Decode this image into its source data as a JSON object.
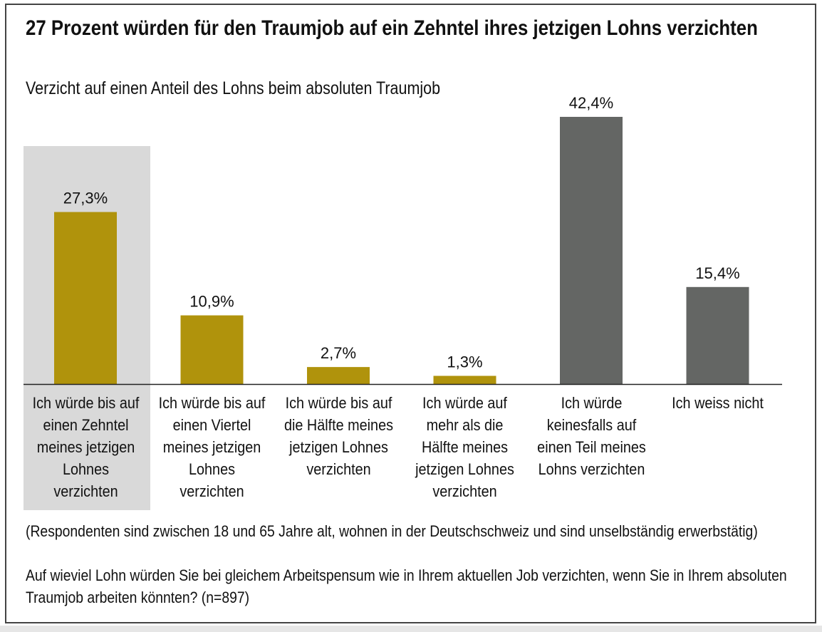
{
  "chart_data": {
    "type": "bar",
    "title": "27 Prozent würden für den Traumjob auf ein Zehntel ihres jetzigen Lohns verzichten",
    "subtitle": "Verzicht auf einen Anteil des Lohns beim absoluten Traumjob",
    "categories": [
      "Ich würde bis auf einen Zehntel meines jetzigen Lohnes verzichten",
      "Ich würde bis auf einen Viertel meines jetzigen Lohnes verzichten",
      "Ich würde bis auf die Hälfte meines jetzigen Lohnes verzichten",
      "Ich würde auf mehr als die Hälfte meines jetzigen Lohnes verzichten",
      "Ich würde keinesfalls auf einen Teil meines Lohns verzichten",
      "Ich weiss nicht"
    ],
    "values": [
      27.3,
      10.9,
      2.7,
      1.3,
      42.4,
      15.4
    ],
    "data_labels": [
      "27,3%",
      "10,9%",
      "2,7%",
      "1,3%",
      "42,4%",
      "15,4%"
    ],
    "bar_colors": [
      "#b0930c",
      "#b0930c",
      "#b0930c",
      "#b0930c",
      "#646664",
      "#646664"
    ],
    "highlight_category": 0,
    "highlight_color": "#d9d9d9",
    "ylim": [
      0,
      45
    ],
    "grid": false,
    "y_axis_visible": false
  },
  "footnotes": [
    "(Respondenten sind zwischen 18 und 65 Jahre alt, wohnen in der Deutschschweiz und sind unselbständig erwerbstätig)",
    "Auf wieviel Lohn würden Sie  bei gleichem Arbeitspensum wie in Ihrem aktuellen Job  verzichten, wenn Sie in Ihrem absoluten Traumjob arbeiten könnten? (n=897)"
  ]
}
